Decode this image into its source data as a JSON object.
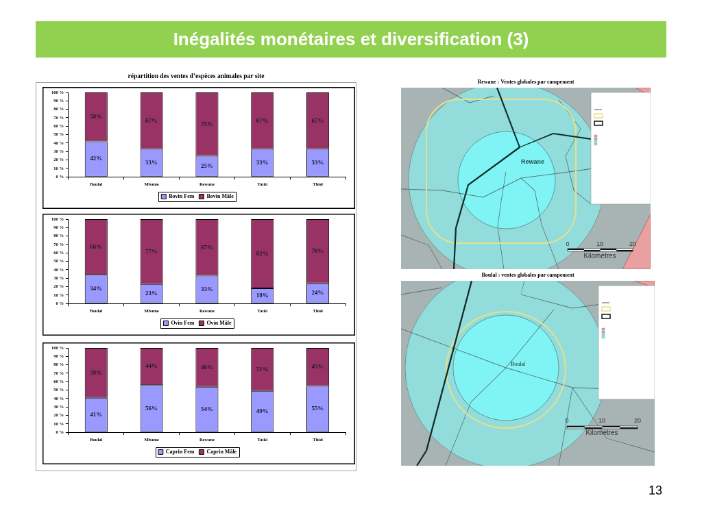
{
  "chart_data": [
    {
      "type": "bar",
      "title": "Inégalités monétaires et diversification (3)",
      "subtitle": "répartition des ventes d’espèces animales par site",
      "categories": [
        "Boulal",
        "Mbame",
        "Rewane",
        "Tatki",
        "Thiel"
      ],
      "series": [
        {
          "name": "Bovin Fem",
          "color": "#9999ff",
          "values": [
            42,
            33,
            25,
            33,
            33
          ],
          "value_labels": [
            "42%",
            "33%",
            "25%",
            "33%",
            "33%"
          ]
        },
        {
          "name": "Bovin Mâle",
          "color": "#993366",
          "values": [
            58,
            67,
            75,
            67,
            67
          ],
          "value_labels": [
            "58%",
            "67%",
            "75%",
            "67%",
            "67%"
          ]
        }
      ],
      "stacked": true,
      "ylim": [
        0,
        100
      ],
      "yticks": [
        {
          "value": 0,
          "label": "0 %"
        },
        {
          "value": 10,
          "label": "10 %"
        },
        {
          "value": 20,
          "label": "20 %"
        },
        {
          "value": 30,
          "label": "30 %"
        },
        {
          "value": 40,
          "label": "40 %"
        },
        {
          "value": 50,
          "label": "50 %"
        },
        {
          "value": 60,
          "label": "60 %"
        },
        {
          "value": 70,
          "label": "70 %"
        },
        {
          "value": 80,
          "label": "80 %"
        },
        {
          "value": 90,
          "label": "90 %"
        },
        {
          "value": 100,
          "label": "100 %"
        }
      ],
      "legend": "bottom",
      "annotations": [
        "13"
      ]
    },
    {
      "type": "bar",
      "categories": [
        "Boulal",
        "Mbame",
        "Rewane",
        "Tatki",
        "Thiel"
      ],
      "series": [
        {
          "name": "Ovin Fem",
          "color": "#9999ff",
          "values": [
            34,
            23,
            33,
            18,
            24
          ],
          "value_labels": [
            "34%",
            "23%",
            "33%",
            "18%",
            "24%"
          ]
        },
        {
          "name": "Ovin Mâle",
          "color": "#993366",
          "values": [
            66,
            77,
            67,
            82,
            76
          ],
          "value_labels": [
            "66%",
            "77%",
            "67%",
            "82%",
            "76%"
          ]
        }
      ],
      "stacked": true,
      "ylim": [
        0,
        100
      ],
      "yticks": [
        {
          "value": 0,
          "label": "0 %"
        },
        {
          "value": 10,
          "label": "10 %"
        },
        {
          "value": 20,
          "label": "20 %"
        },
        {
          "value": 30,
          "label": "30 %"
        },
        {
          "value": 40,
          "label": "40 %"
        },
        {
          "value": 50,
          "label": "50 %"
        },
        {
          "value": 60,
          "label": "60 %"
        },
        {
          "value": 70,
          "label": "70 %"
        },
        {
          "value": 80,
          "label": "80 %"
        },
        {
          "value": 90,
          "label": "90 %"
        },
        {
          "value": 100,
          "label": "100 %"
        }
      ],
      "legend": "bottom"
    },
    {
      "type": "bar",
      "categories": [
        "Boulal",
        "Mbame",
        "Rewane",
        "Tatki",
        "Thiel"
      ],
      "series": [
        {
          "name": "Caprin Fem",
          "color": "#9999ff",
          "values": [
            41,
            56,
            54,
            49,
            55
          ],
          "value_labels": [
            "41%",
            "56%",
            "54%",
            "49%",
            "55%"
          ]
        },
        {
          "name": "Caprin Mâle",
          "color": "#993366",
          "values": [
            59,
            44,
            46,
            51,
            45
          ],
          "value_labels": [
            "59%",
            "44%",
            "46%",
            "51%",
            "45%"
          ]
        }
      ],
      "stacked": true,
      "ylim": [
        0,
        100
      ],
      "yticks": [
        {
          "value": 0,
          "label": "0 %"
        },
        {
          "value": 10,
          "label": "10 %"
        },
        {
          "value": 20,
          "label": "20 %"
        },
        {
          "value": 30,
          "label": "30 %"
        },
        {
          "value": 40,
          "label": "40 %"
        },
        {
          "value": 50,
          "label": "50 %"
        },
        {
          "value": 60,
          "label": "60 %"
        },
        {
          "value": 70,
          "label": "70 %"
        },
        {
          "value": 80,
          "label": "80 %"
        },
        {
          "value": 90,
          "label": "90 %"
        },
        {
          "value": 100,
          "label": "100 %"
        }
      ],
      "legend": "bottom"
    },
    {
      "type": "other",
      "title": "Rewane : Ventes globales par campement",
      "annotations": [
        "Rewane",
        "0",
        "10",
        "20",
        "Kilomètres"
      ]
    },
    {
      "type": "other",
      "title": "Boulal : ventes globales par campement",
      "annotations": [
        "Boulal",
        "0",
        "10",
        "20",
        "Kilomètres"
      ]
    }
  ]
}
